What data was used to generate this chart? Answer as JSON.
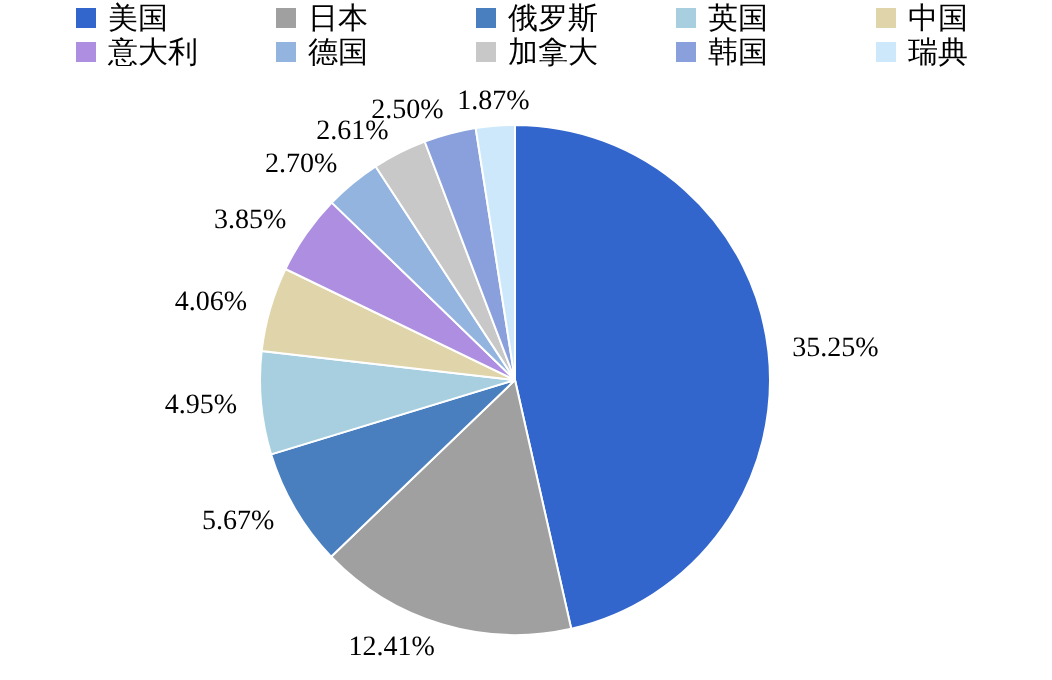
{
  "chart_data": {
    "type": "pie",
    "categories": [
      "美国",
      "日本",
      "俄罗斯",
      "英国",
      "中国",
      "意大利",
      "德国",
      "加拿大",
      "韩国",
      "瑞典"
    ],
    "values": [
      35.25,
      12.41,
      5.67,
      4.95,
      4.06,
      3.85,
      2.7,
      2.61,
      2.5,
      1.87
    ],
    "value_labels": [
      "35.25%",
      "12.41%",
      "5.67%",
      "4.95%",
      "4.06%",
      "3.85%",
      "2.70%",
      "2.61%",
      "2.50%",
      "1.87%"
    ],
    "colors": [
      "#3366cc",
      "#a0a0a0",
      "#4a7fbf",
      "#a8cfe0",
      "#e0d4aa",
      "#ad8ee0",
      "#94b4e0",
      "#c8c8c8",
      "#8aa0dc",
      "#cce8fa"
    ],
    "legend": "top"
  }
}
